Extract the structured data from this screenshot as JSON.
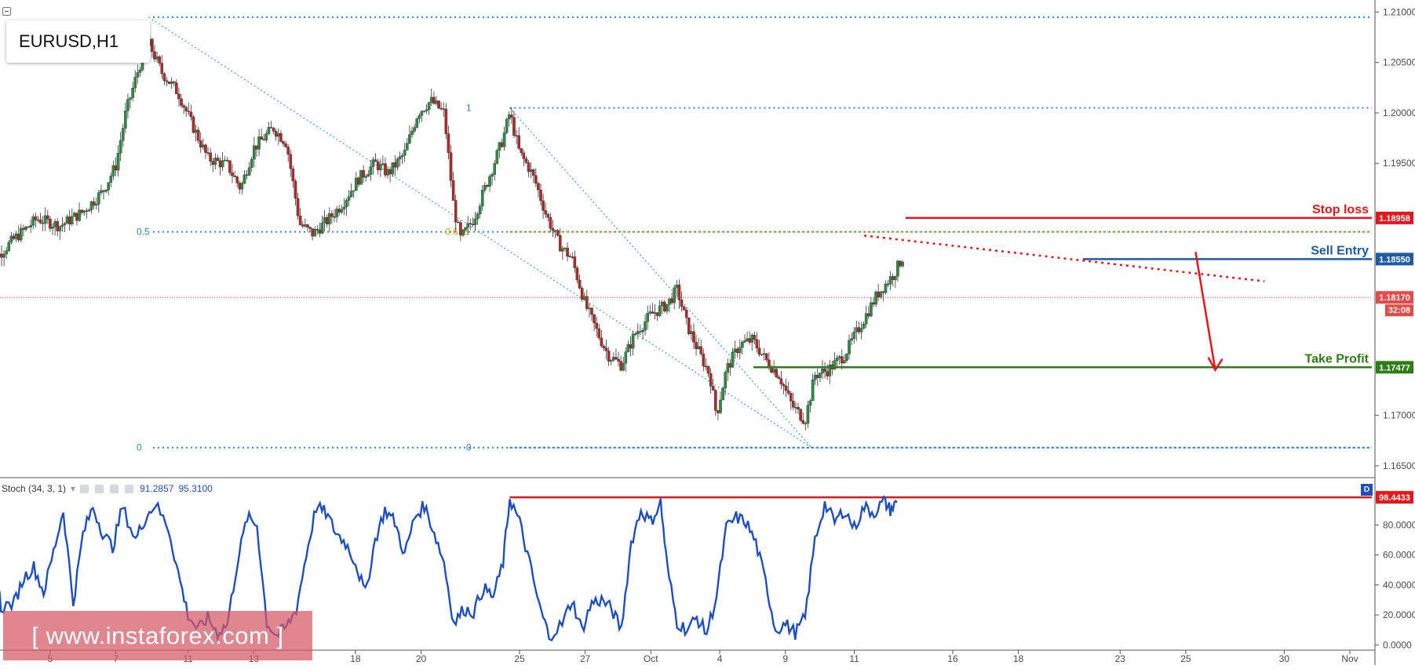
{
  "chart_data": [
    {
      "type": "candlestick",
      "symbol": "EURUSD,H1",
      "price_axis": {
        "range": [
          1.1639,
          1.2112
        ],
        "ticks": [
          "1.21000",
          "1.20500",
          "1.20000",
          "1.19500",
          "1.17000",
          "1.16500"
        ],
        "last_price": "1.18170",
        "countdown": "32:08"
      },
      "date_axis": {
        "range": [
          3.0,
          31.0
        ],
        "ticks": [
          {
            "label": "5",
            "day": 5.0
          },
          {
            "label": "7",
            "day": 7.0
          },
          {
            "label": "11",
            "day": 9.2
          },
          {
            "label": "13",
            "day": 11.2
          },
          {
            "label": "18",
            "day": 14.3
          },
          {
            "label": "20",
            "day": 16.3
          },
          {
            "label": "25",
            "day": 19.3
          },
          {
            "label": "27",
            "day": 21.3
          },
          {
            "label": "Oct",
            "day": 23.3
          },
          {
            "label": "4",
            "day": 25.4
          },
          {
            "label": "9",
            "day": 27.4
          },
          {
            "label": "11",
            "day": 29.5
          },
          {
            "label": "16",
            "day": 32.5
          },
          {
            "label": "18",
            "day": 34.5
          },
          {
            "label": "23",
            "day": 37.6
          },
          {
            "label": "25",
            "day": 39.6
          },
          {
            "label": "30",
            "day": 42.6
          },
          {
            "label": "Nov",
            "day": 44.6
          }
        ]
      },
      "price_path": [
        [
          3.0,
          1.1905
        ],
        [
          3.4,
          1.1858
        ],
        [
          3.9,
          1.1875
        ],
        [
          4.6,
          1.1895
        ],
        [
          5.3,
          1.1888
        ],
        [
          6.0,
          1.1902
        ],
        [
          6.6,
          1.1922
        ],
        [
          7.0,
          1.1948
        ],
        [
          7.3,
          1.2
        ],
        [
          7.7,
          1.2045
        ],
        [
          8.0,
          1.207
        ],
        [
          8.4,
          1.204
        ],
        [
          8.9,
          1.202
        ],
        [
          9.3,
          1.199
        ],
        [
          9.8,
          1.1955
        ],
        [
          10.4,
          1.1948
        ],
        [
          10.8,
          1.1925
        ],
        [
          11.2,
          1.1965
        ],
        [
          11.8,
          1.1985
        ],
        [
          12.2,
          1.197
        ],
        [
          12.6,
          1.189
        ],
        [
          13.0,
          1.188
        ],
        [
          13.5,
          1.1895
        ],
        [
          13.9,
          1.191
        ],
        [
          14.4,
          1.1935
        ],
        [
          14.9,
          1.195
        ],
        [
          15.3,
          1.194
        ],
        [
          15.8,
          1.196
        ],
        [
          16.2,
          1.2
        ],
        [
          16.6,
          1.2012
        ],
        [
          17.0,
          1.2
        ],
        [
          17.3,
          1.1905
        ],
        [
          17.5,
          1.1875
        ],
        [
          17.9,
          1.1895
        ],
        [
          18.3,
          1.193
        ],
        [
          18.8,
          1.1975
        ],
        [
          19.0,
          1.2
        ],
        [
          19.3,
          1.196
        ],
        [
          19.6,
          1.1945
        ],
        [
          19.8,
          1.193
        ],
        [
          20.1,
          1.19
        ],
        [
          20.5,
          1.187
        ],
        [
          20.9,
          1.1855
        ],
        [
          21.3,
          1.181
        ],
        [
          21.7,
          1.178
        ],
        [
          22.0,
          1.176
        ],
        [
          22.4,
          1.175
        ],
        [
          22.8,
          1.178
        ],
        [
          23.3,
          1.18
        ],
        [
          23.8,
          1.181
        ],
        [
          24.1,
          1.1825
        ],
        [
          24.4,
          1.179
        ],
        [
          24.8,
          1.176
        ],
        [
          25.1,
          1.174
        ],
        [
          25.3,
          1.17
        ],
        [
          25.6,
          1.1745
        ],
        [
          26.0,
          1.177
        ],
        [
          26.4,
          1.1775
        ],
        [
          26.8,
          1.1755
        ],
        [
          27.2,
          1.174
        ],
        [
          27.6,
          1.171
        ],
        [
          28.0,
          1.1695
        ],
        [
          28.3,
          1.174
        ],
        [
          28.7,
          1.1745
        ],
        [
          29.2,
          1.176
        ],
        [
          29.7,
          1.179
        ],
        [
          30.2,
          1.182
        ],
        [
          30.7,
          1.184
        ],
        [
          31.0,
          1.1858
        ]
      ],
      "fib_retracement_1": {
        "from": {
          "day": 8.0,
          "price": 1.2095
        },
        "to": {
          "day": 28.2,
          "price": 1.1668
        },
        "levels": [
          {
            "label": "0.5",
            "price": 1.1882
          },
          {
            "label": "0",
            "price": 1.1668
          }
        ]
      },
      "fib_retracement_2": {
        "from": {
          "day": 19.0,
          "price": 1.2005
        },
        "to": {
          "day": 28.2,
          "price": 1.1668
        },
        "levels": [
          {
            "label": "1",
            "price": 1.2005
          },
          {
            "label": "0.618",
            "price": 1.1882
          },
          {
            "label": "0",
            "price": 1.1668
          }
        ]
      },
      "levels": [
        {
          "name": "Stop loss",
          "price": 1.18958,
          "price_label": "1.18958",
          "color": "#e8151b"
        },
        {
          "name": "Sell Entry",
          "price": 1.1855,
          "price_label": "1.18550",
          "color": "#1d5aa8"
        },
        {
          "name": "Take Profit",
          "price": 1.17477,
          "price_label": "1.17477",
          "color": "#2e7d17"
        }
      ],
      "colors": {
        "bull": "#2e8b45",
        "bear": "#b02a2a",
        "fib": "#2b8acb",
        "fib618": "#d4a017",
        "last_price": "#e84a4a"
      }
    },
    {
      "type": "line",
      "indicator": "Stoch (34, 3, 1)",
      "k_value": "91.2857",
      "d_value": "95.3100",
      "marker_level": "98.4433",
      "d_marker": "D",
      "yaxis": {
        "range": [
          -3,
          110
        ],
        "ticks": [
          "80.0000",
          "60.0000",
          "40.0000",
          "20.0000",
          "0.0000"
        ]
      },
      "series": [
        [
          3.0,
          82
        ],
        [
          3.3,
          60
        ],
        [
          3.5,
          25
        ],
        [
          3.9,
          28
        ],
        [
          4.2,
          45
        ],
        [
          4.5,
          52
        ],
        [
          4.8,
          35
        ],
        [
          5.1,
          62
        ],
        [
          5.4,
          90
        ],
        [
          5.7,
          28
        ],
        [
          6.0,
          74
        ],
        [
          6.3,
          92
        ],
        [
          6.6,
          75
        ],
        [
          6.9,
          65
        ],
        [
          7.2,
          92
        ],
        [
          7.6,
          70
        ],
        [
          7.9,
          85
        ],
        [
          8.2,
          94
        ],
        [
          8.6,
          78
        ],
        [
          8.9,
          48
        ],
        [
          9.2,
          20
        ],
        [
          9.5,
          10
        ],
        [
          9.8,
          18
        ],
        [
          10.1,
          8
        ],
        [
          10.4,
          14
        ],
        [
          10.7,
          55
        ],
        [
          11.0,
          85
        ],
        [
          11.3,
          80
        ],
        [
          11.6,
          15
        ],
        [
          11.9,
          6
        ],
        [
          12.2,
          12
        ],
        [
          12.5,
          24
        ],
        [
          12.8,
          60
        ],
        [
          13.1,
          92
        ],
        [
          13.4,
          88
        ],
        [
          13.7,
          75
        ],
        [
          14.0,
          68
        ],
        [
          14.3,
          55
        ],
        [
          14.6,
          34
        ],
        [
          14.9,
          70
        ],
        [
          15.2,
          90
        ],
        [
          15.5,
          82
        ],
        [
          15.8,
          60
        ],
        [
          16.1,
          85
        ],
        [
          16.4,
          93
        ],
        [
          16.7,
          75
        ],
        [
          17.0,
          55
        ],
        [
          17.3,
          14
        ],
        [
          17.6,
          24
        ],
        [
          17.9,
          22
        ],
        [
          18.2,
          38
        ],
        [
          18.5,
          32
        ],
        [
          18.8,
          55
        ],
        [
          19.0,
          98
        ],
        [
          19.3,
          82
        ],
        [
          19.6,
          55
        ],
        [
          19.9,
          26
        ],
        [
          20.2,
          6
        ],
        [
          20.6,
          14
        ],
        [
          20.9,
          30
        ],
        [
          21.2,
          10
        ],
        [
          21.5,
          28
        ],
        [
          21.8,
          30
        ],
        [
          22.1,
          24
        ],
        [
          22.4,
          10
        ],
        [
          22.7,
          68
        ],
        [
          23.0,
          90
        ],
        [
          23.3,
          82
        ],
        [
          23.6,
          95
        ],
        [
          23.8,
          52
        ],
        [
          24.1,
          15
        ],
        [
          24.4,
          10
        ],
        [
          24.7,
          18
        ],
        [
          25.0,
          8
        ],
        [
          25.3,
          32
        ],
        [
          25.6,
          78
        ],
        [
          25.9,
          85
        ],
        [
          26.2,
          82
        ],
        [
          26.5,
          68
        ],
        [
          26.8,
          42
        ],
        [
          27.1,
          10
        ],
        [
          27.4,
          14
        ],
        [
          27.7,
          8
        ],
        [
          28.0,
          18
        ],
        [
          28.3,
          70
        ],
        [
          28.6,
          94
        ],
        [
          28.9,
          82
        ],
        [
          29.2,
          90
        ],
        [
          29.5,
          78
        ],
        [
          29.8,
          92
        ],
        [
          30.1,
          88
        ],
        [
          30.4,
          96
        ],
        [
          30.6,
          90
        ],
        [
          30.8,
          95
        ]
      ]
    }
  ],
  "ui": {
    "symbol_label": "EURUSD,H1",
    "stoch_title": "Stoch (34, 3, 1)",
    "watermark_text": "[ www.instaforex.com ]"
  }
}
